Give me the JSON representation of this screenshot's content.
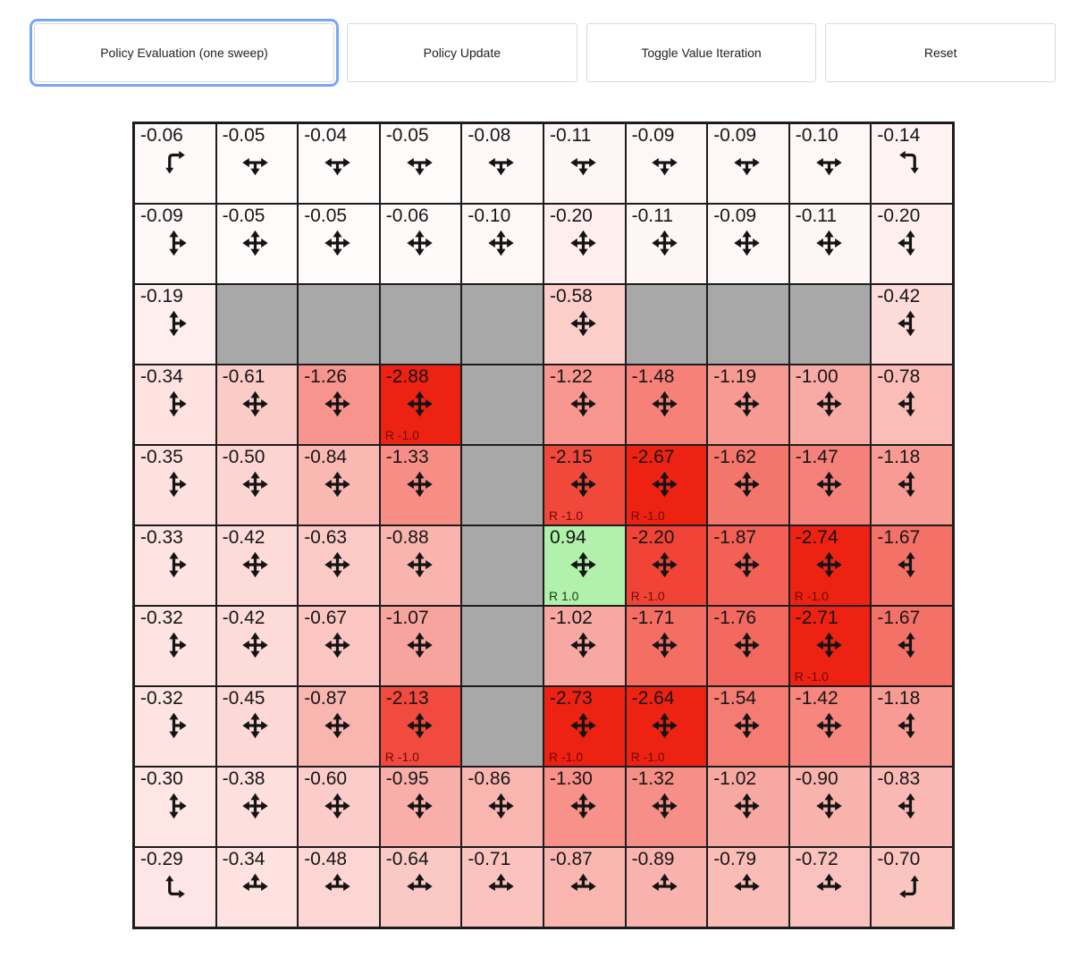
{
  "toolbar": {
    "buttons": [
      {
        "label": "Policy Evaluation (one sweep)",
        "focused": true
      },
      {
        "label": "Policy Update",
        "focused": false
      },
      {
        "label": "Toggle Value Iteration",
        "focused": false
      },
      {
        "label": "Reset",
        "focused": false
      }
    ]
  },
  "colors": {
    "negative_end": "#ee2213",
    "positive_end": "#28d919",
    "neutral": "#ffffff",
    "wall": "#a8a8a8",
    "grid_line": "#1c1c1c",
    "arrow": "#141414",
    "value_text": "#161616",
    "reward_negative_text": "#6e0a03",
    "reward_positive_text": "#123f12",
    "focus_ring": "#79a7f5",
    "button_border": "#d9d9d9",
    "button_text": "#202124",
    "color_scale_divisor": 2.6
  },
  "grid": {
    "rows": 10,
    "cols": 10,
    "cells": [
      {
        "v": "-0.06",
        "dirs": "dr"
      },
      {
        "v": "-0.05",
        "dirs": "lrd"
      },
      {
        "v": "-0.04",
        "dirs": "lrd"
      },
      {
        "v": "-0.05",
        "dirs": "lrd"
      },
      {
        "v": "-0.08",
        "dirs": "lrd"
      },
      {
        "v": "-0.11",
        "dirs": "lrd"
      },
      {
        "v": "-0.09",
        "dirs": "lrd"
      },
      {
        "v": "-0.09",
        "dirs": "lrd"
      },
      {
        "v": "-0.10",
        "dirs": "lrd"
      },
      {
        "v": "-0.14",
        "dirs": "ld"
      },
      {
        "v": "-0.09",
        "dirs": "udr"
      },
      {
        "v": "-0.05",
        "dirs": "udlr"
      },
      {
        "v": "-0.05",
        "dirs": "udlr"
      },
      {
        "v": "-0.06",
        "dirs": "udlr"
      },
      {
        "v": "-0.10",
        "dirs": "udlr"
      },
      {
        "v": "-0.20",
        "dirs": "udlr"
      },
      {
        "v": "-0.11",
        "dirs": "udlr"
      },
      {
        "v": "-0.09",
        "dirs": "udlr"
      },
      {
        "v": "-0.11",
        "dirs": "udlr"
      },
      {
        "v": "-0.20",
        "dirs": "udl"
      },
      {
        "v": "-0.19",
        "dirs": "udr"
      },
      {
        "wall": true
      },
      {
        "wall": true
      },
      {
        "wall": true
      },
      {
        "wall": true
      },
      {
        "v": "-0.58",
        "dirs": "udlr"
      },
      {
        "wall": true
      },
      {
        "wall": true
      },
      {
        "wall": true
      },
      {
        "v": "-0.42",
        "dirs": "udl"
      },
      {
        "v": "-0.34",
        "dirs": "udr"
      },
      {
        "v": "-0.61",
        "dirs": "udlr"
      },
      {
        "v": "-1.26",
        "dirs": "udlr"
      },
      {
        "v": "-2.88",
        "dirs": "udlr",
        "r": "R -1.0"
      },
      {
        "wall": true
      },
      {
        "v": "-1.22",
        "dirs": "udlr"
      },
      {
        "v": "-1.48",
        "dirs": "udlr"
      },
      {
        "v": "-1.19",
        "dirs": "udlr"
      },
      {
        "v": "-1.00",
        "dirs": "udlr"
      },
      {
        "v": "-0.78",
        "dirs": "udl"
      },
      {
        "v": "-0.35",
        "dirs": "udr"
      },
      {
        "v": "-0.50",
        "dirs": "udlr"
      },
      {
        "v": "-0.84",
        "dirs": "udlr"
      },
      {
        "v": "-1.33",
        "dirs": "udlr"
      },
      {
        "wall": true
      },
      {
        "v": "-2.15",
        "dirs": "udlr",
        "r": "R -1.0"
      },
      {
        "v": "-2.67",
        "dirs": "udlr",
        "r": "R -1.0"
      },
      {
        "v": "-1.62",
        "dirs": "udlr"
      },
      {
        "v": "-1.47",
        "dirs": "udlr"
      },
      {
        "v": "-1.18",
        "dirs": "udl"
      },
      {
        "v": "-0.33",
        "dirs": "udr"
      },
      {
        "v": "-0.42",
        "dirs": "udlr"
      },
      {
        "v": "-0.63",
        "dirs": "udlr"
      },
      {
        "v": "-0.88",
        "dirs": "udlr"
      },
      {
        "wall": true
      },
      {
        "v": "0.94",
        "dirs": "udlr",
        "r": "R 1.0"
      },
      {
        "v": "-2.20",
        "dirs": "udlr",
        "r": "R -1.0"
      },
      {
        "v": "-1.87",
        "dirs": "udlr"
      },
      {
        "v": "-2.74",
        "dirs": "udlr",
        "r": "R -1.0"
      },
      {
        "v": "-1.67",
        "dirs": "udl"
      },
      {
        "v": "-0.32",
        "dirs": "udr"
      },
      {
        "v": "-0.42",
        "dirs": "udlr"
      },
      {
        "v": "-0.67",
        "dirs": "udlr"
      },
      {
        "v": "-1.07",
        "dirs": "udlr"
      },
      {
        "wall": true
      },
      {
        "v": "-1.02",
        "dirs": "udlr"
      },
      {
        "v": "-1.71",
        "dirs": "udlr"
      },
      {
        "v": "-1.76",
        "dirs": "udlr"
      },
      {
        "v": "-2.71",
        "dirs": "udlr",
        "r": "R -1.0"
      },
      {
        "v": "-1.67",
        "dirs": "udl"
      },
      {
        "v": "-0.32",
        "dirs": "udr"
      },
      {
        "v": "-0.45",
        "dirs": "udlr"
      },
      {
        "v": "-0.87",
        "dirs": "udlr"
      },
      {
        "v": "-2.13",
        "dirs": "udlr",
        "r": "R -1.0"
      },
      {
        "wall": true
      },
      {
        "v": "-2.73",
        "dirs": "udlr",
        "r": "R -1.0"
      },
      {
        "v": "-2.64",
        "dirs": "udlr",
        "r": "R -1.0"
      },
      {
        "v": "-1.54",
        "dirs": "udlr"
      },
      {
        "v": "-1.42",
        "dirs": "udlr"
      },
      {
        "v": "-1.18",
        "dirs": "udl"
      },
      {
        "v": "-0.30",
        "dirs": "udr"
      },
      {
        "v": "-0.38",
        "dirs": "udlr"
      },
      {
        "v": "-0.60",
        "dirs": "udlr"
      },
      {
        "v": "-0.95",
        "dirs": "udlr"
      },
      {
        "v": "-0.86",
        "dirs": "udlr"
      },
      {
        "v": "-1.30",
        "dirs": "udlr"
      },
      {
        "v": "-1.32",
        "dirs": "udlr"
      },
      {
        "v": "-1.02",
        "dirs": "udlr"
      },
      {
        "v": "-0.90",
        "dirs": "udlr"
      },
      {
        "v": "-0.83",
        "dirs": "udl"
      },
      {
        "v": "-0.29",
        "dirs": "ur"
      },
      {
        "v": "-0.34",
        "dirs": "lru"
      },
      {
        "v": "-0.48",
        "dirs": "lru"
      },
      {
        "v": "-0.64",
        "dirs": "lru"
      },
      {
        "v": "-0.71",
        "dirs": "lru"
      },
      {
        "v": "-0.87",
        "dirs": "lru"
      },
      {
        "v": "-0.89",
        "dirs": "lru"
      },
      {
        "v": "-0.79",
        "dirs": "lru"
      },
      {
        "v": "-0.72",
        "dirs": "lru"
      },
      {
        "v": "-0.70",
        "dirs": "ul"
      }
    ]
  }
}
